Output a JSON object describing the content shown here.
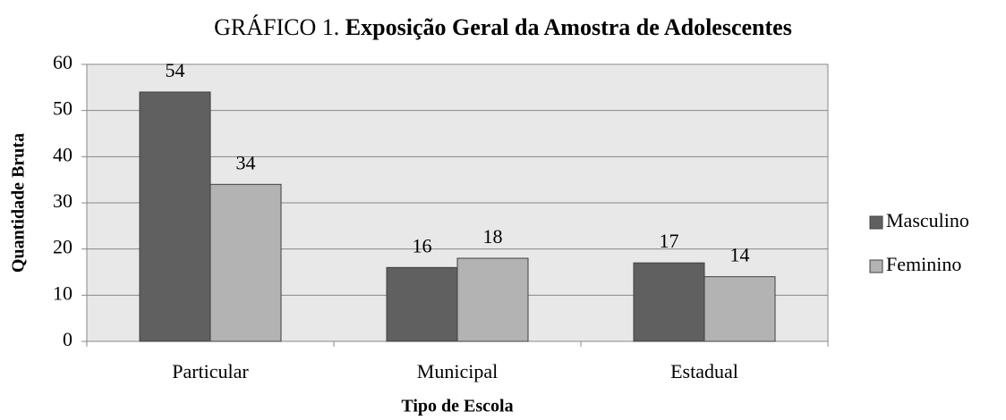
{
  "chart_data": {
    "type": "bar",
    "title_prefix": "GRÁFICO 1.",
    "title": "Exposição Geral da Amostra de Adolescentes",
    "x_label": "Tipo de Escola",
    "y_label": "Quantidade Bruta",
    "categories": [
      "Particular",
      "Municipal",
      "Estadual"
    ],
    "series": [
      {
        "name": "Masculino",
        "color": "#606060",
        "values": [
          54,
          16,
          17
        ]
      },
      {
        "name": "Feminino",
        "color": "#b3b3b3",
        "values": [
          34,
          18,
          14
        ]
      }
    ],
    "ylim": [
      0,
      60
    ],
    "yticks": [
      0,
      10,
      20,
      30,
      40,
      50,
      60
    ],
    "grid": true,
    "legend": "right"
  }
}
